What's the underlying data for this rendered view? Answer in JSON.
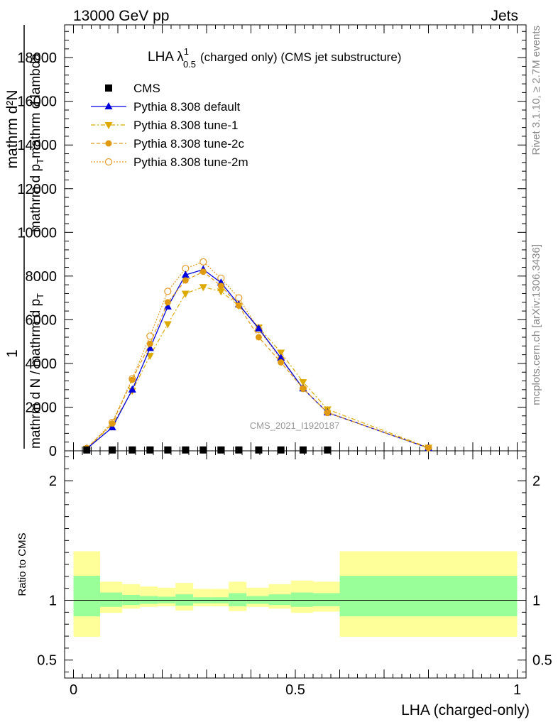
{
  "header": {
    "left": "13000 GeV pp",
    "right": "Jets"
  },
  "side_texts": {
    "rivet": "Rivet 3.1.10, ≥ 2.7M events",
    "mcplots": "mcplots.cern.ch [arXiv:1306.3436]"
  },
  "main_title": {
    "prefix": "LHA λ",
    "sup": "1",
    "sub": "0.5",
    "suffix": "(charged only) (CMS jet substructure)"
  },
  "ylabel": {
    "numerator_1": "1",
    "denominator_1": "mathrm d N / mathrm d p",
    "denominator_1_sub": "T",
    "numerator_2": "mathrm d²N",
    "denominator_2": "mathrm d p",
    "denominator_2_sub": "T",
    "denominator_2_rest": "mathrm d lambda"
  },
  "watermark": "CMS_2021_I1920187",
  "ratio_ylabel": "Ratio to CMS",
  "xlabel": "LHA (charged-only)",
  "legend": [
    {
      "label": "CMS",
      "color": "#000000",
      "marker": "square",
      "dash": ""
    },
    {
      "label": "Pythia 8.308 default",
      "color": "#0000dd",
      "marker": "triangle-up",
      "dash": ""
    },
    {
      "label": "Pythia 8.308 tune-1",
      "color": "#ddaa00",
      "marker": "triangle-down",
      "dash": "6,3,2,3"
    },
    {
      "label": "Pythia 8.308 tune-2c",
      "color": "#e09a10",
      "marker": "circle",
      "dash": "5,3"
    },
    {
      "label": "Pythia 8.308 tune-2m",
      "color": "#e59a20",
      "marker": "circle-open",
      "dash": "2,2"
    }
  ],
  "chart_data": [
    {
      "type": "line",
      "title": "LHA λ^1_0.5 (charged only) (CMS jet substructure)",
      "xlabel": "LHA (charged-only)",
      "ylabel": "1 / mathrm d N / mathrm d p_T  mathrm d²N / mathrm d p_T mathrm d lambda",
      "xlim": [
        -0.02,
        1.02
      ],
      "ylim": [
        0,
        19500
      ],
      "yticks": [
        0,
        2000,
        4000,
        6000,
        8000,
        10000,
        12000,
        14000,
        16000,
        18000
      ],
      "ytick_labels": [
        "0",
        "2000",
        "4000",
        "6000",
        "8000",
        "10000",
        "12000",
        "14000",
        "16000",
        "18000"
      ],
      "grid": false,
      "legend_position": "top-left",
      "series": [
        {
          "name": "CMS",
          "x": [
            0.03,
            0.0875,
            0.1325,
            0.1725,
            0.2125,
            0.2525,
            0.2925,
            0.3325,
            0.3725,
            0.4175,
            0.4675,
            0.5175,
            0.5725
          ],
          "y": [
            40,
            40,
            40,
            40,
            40,
            40,
            40,
            40,
            40,
            40,
            40,
            40,
            40
          ]
        },
        {
          "name": "Pythia 8.308 default",
          "x": [
            0.03,
            0.0875,
            0.1325,
            0.1725,
            0.2125,
            0.2525,
            0.2925,
            0.3325,
            0.3725,
            0.4175,
            0.4675,
            0.5175,
            0.5725,
            0.8
          ],
          "y": [
            100,
            1070,
            2800,
            4700,
            6600,
            8050,
            8300,
            7700,
            6700,
            5600,
            4250,
            2850,
            1750,
            130
          ]
        },
        {
          "name": "Pythia 8.308 tune-1",
          "x": [
            0.03,
            0.0875,
            0.1325,
            0.1725,
            0.2125,
            0.2525,
            0.2925,
            0.3325,
            0.3725,
            0.4175,
            0.4675,
            0.5175,
            0.5725,
            0.8
          ],
          "y": [
            100,
            1200,
            2750,
            4350,
            5800,
            7200,
            7500,
            7300,
            6650,
            5650,
            4500,
            3150,
            1900,
            150
          ]
        },
        {
          "name": "Pythia 8.308 tune-2c",
          "x": [
            0.03,
            0.0875,
            0.1325,
            0.1725,
            0.2125,
            0.2525,
            0.2925,
            0.3325,
            0.3725,
            0.4175,
            0.4675,
            0.5175,
            0.5725,
            0.8
          ],
          "y": [
            120,
            1250,
            3250,
            4900,
            6800,
            7800,
            8200,
            7550,
            6650,
            5200,
            4050,
            2850,
            1750,
            130
          ]
        },
        {
          "name": "Pythia 8.308 tune-2m",
          "x": [
            0.03,
            0.0875,
            0.1325,
            0.1725,
            0.2125,
            0.2525,
            0.2925,
            0.3325,
            0.3725,
            0.4175,
            0.4675,
            0.5175,
            0.5725,
            0.8
          ],
          "y": [
            110,
            1300,
            3300,
            5250,
            7300,
            8350,
            8650,
            7900,
            7000,
            5550,
            4200,
            2850,
            1750,
            140
          ]
        }
      ]
    },
    {
      "type": "area",
      "ylabel": "Ratio to CMS",
      "xlabel": "LHA (charged-only)",
      "xlim": [
        -0.02,
        1.02
      ],
      "ylim": [
        0.35,
        2.25
      ],
      "yticks": [
        0.5,
        1,
        2
      ],
      "ytick_labels": [
        "0.5",
        "1",
        "2"
      ],
      "xticks": [
        0,
        0.5,
        1
      ],
      "xtick_labels": [
        "0",
        "0.5",
        "1"
      ],
      "reference_line": 1,
      "bins": [
        {
          "x": [
            0.0,
            0.06
          ],
          "yellow": [
            0.695,
            1.41
          ],
          "green": [
            0.865,
            1.205
          ]
        },
        {
          "x": [
            0.06,
            0.11
          ],
          "yellow": [
            0.895,
            1.155
          ],
          "green": [
            0.945,
            1.065
          ]
        },
        {
          "x": [
            0.11,
            0.15
          ],
          "yellow": [
            0.93,
            1.135
          ],
          "green": [
            0.96,
            1.045
          ]
        },
        {
          "x": [
            0.15,
            0.19
          ],
          "yellow": [
            0.945,
            1.115
          ],
          "green": [
            0.97,
            1.035
          ]
        },
        {
          "x": [
            0.19,
            0.23
          ],
          "yellow": [
            0.95,
            1.105
          ],
          "green": [
            0.975,
            1.03
          ]
        },
        {
          "x": [
            0.23,
            0.27
          ],
          "yellow": [
            0.915,
            1.145
          ],
          "green": [
            0.955,
            1.05
          ]
        },
        {
          "x": [
            0.27,
            0.31
          ],
          "yellow": [
            0.95,
            1.095
          ],
          "green": [
            0.975,
            1.025
          ]
        },
        {
          "x": [
            0.31,
            0.35
          ],
          "yellow": [
            0.95,
            1.095
          ],
          "green": [
            0.975,
            1.025
          ]
        },
        {
          "x": [
            0.35,
            0.39
          ],
          "yellow": [
            0.91,
            1.155
          ],
          "green": [
            0.95,
            1.06
          ]
        },
        {
          "x": [
            0.39,
            0.44
          ],
          "yellow": [
            0.945,
            1.105
          ],
          "green": [
            0.97,
            1.035
          ]
        },
        {
          "x": [
            0.44,
            0.49
          ],
          "yellow": [
            0.93,
            1.135
          ],
          "green": [
            0.96,
            1.05
          ]
        },
        {
          "x": [
            0.49,
            0.54
          ],
          "yellow": [
            0.895,
            1.165
          ],
          "green": [
            0.945,
            1.065
          ]
        },
        {
          "x": [
            0.54,
            0.6
          ],
          "yellow": [
            0.905,
            1.155
          ],
          "green": [
            0.95,
            1.06
          ]
        },
        {
          "x": [
            0.6,
            1.0
          ],
          "yellow": [
            0.695,
            1.41
          ],
          "green": [
            0.865,
            1.205
          ]
        }
      ],
      "colors": {
        "yellow": "#ffff99",
        "green": "#99ff99"
      }
    }
  ]
}
